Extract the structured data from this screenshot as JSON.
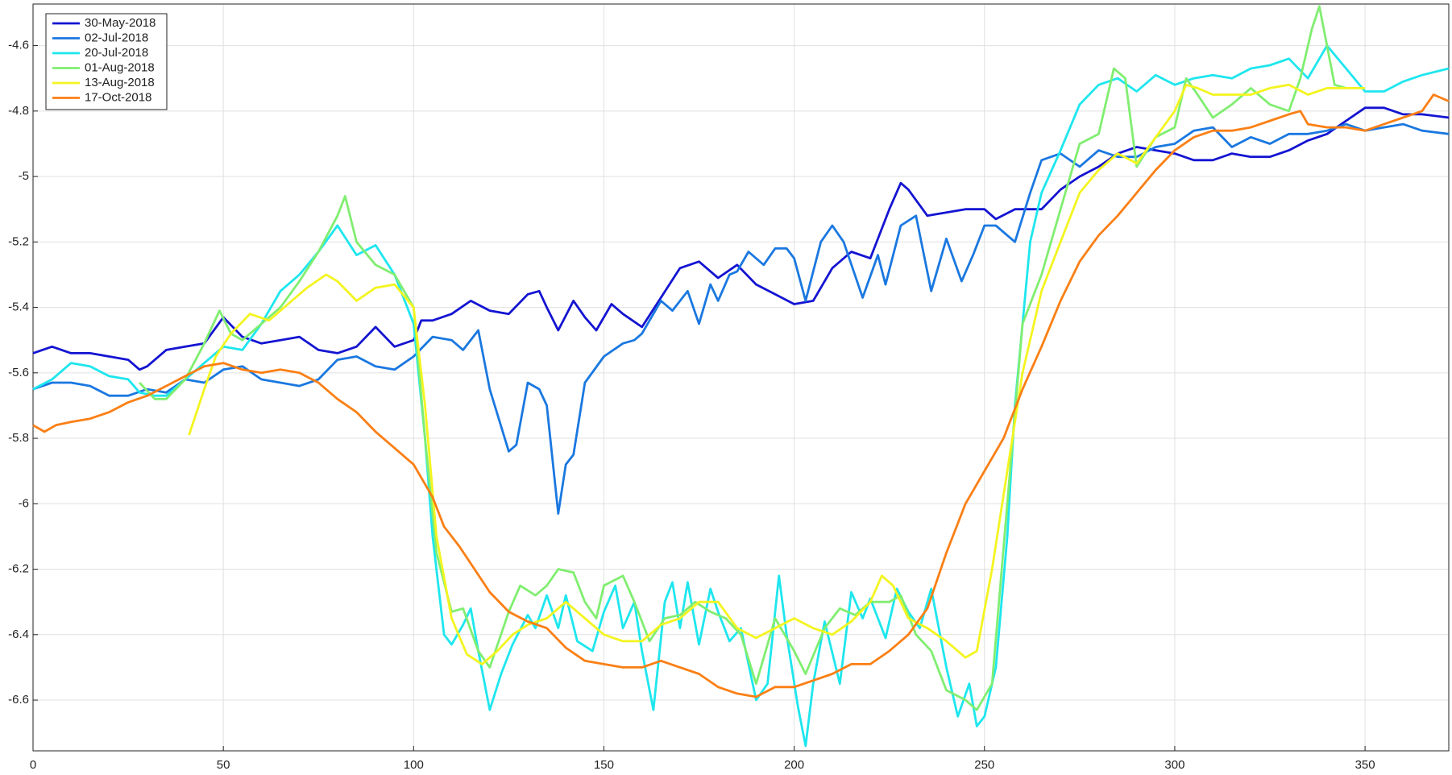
{
  "chart_data": {
    "type": "line",
    "xlim": [
      0,
      372
    ],
    "ylim": [
      -6.755,
      -4.473
    ],
    "xticks": [
      0,
      50,
      100,
      150,
      200,
      250,
      300,
      350
    ],
    "yticks": [
      -6.6,
      -6.4,
      -6.2,
      -6,
      -5.8,
      -5.6,
      -5.4,
      -5.2,
      -5,
      -4.8,
      -4.6
    ],
    "grid": true,
    "legend": "upper left",
    "series": [
      {
        "name": "30-May-2018",
        "color": "#1414d2",
        "x": [
          0,
          5,
          10,
          15,
          20,
          25,
          28,
          30,
          35,
          40,
          45,
          50,
          55,
          60,
          65,
          70,
          75,
          80,
          85,
          90,
          95,
          100,
          102,
          105,
          110,
          115,
          120,
          125,
          130,
          133,
          135,
          138,
          142,
          145,
          148,
          152,
          155,
          160,
          165,
          170,
          175,
          180,
          185,
          190,
          195,
          200,
          205,
          210,
          215,
          220,
          225,
          228,
          230,
          235,
          240,
          245,
          250,
          253,
          258,
          265,
          270,
          275,
          280,
          285,
          290,
          295,
          300,
          305,
          310,
          315,
          320,
          325,
          330,
          335,
          340,
          345,
          350,
          355,
          360,
          365,
          372
        ],
        "values": [
          -5.54,
          -5.52,
          -5.54,
          -5.54,
          -5.55,
          -5.56,
          -5.59,
          -5.58,
          -5.53,
          -5.52,
          -5.51,
          -5.43,
          -5.49,
          -5.51,
          -5.5,
          -5.49,
          -5.53,
          -5.54,
          -5.52,
          -5.46,
          -5.52,
          -5.5,
          -5.44,
          -5.44,
          -5.42,
          -5.38,
          -5.41,
          -5.42,
          -5.36,
          -5.35,
          -5.4,
          -5.47,
          -5.38,
          -5.43,
          -5.47,
          -5.39,
          -5.42,
          -5.46,
          -5.37,
          -5.28,
          -5.26,
          -5.31,
          -5.27,
          -5.33,
          -5.36,
          -5.39,
          -5.38,
          -5.28,
          -5.23,
          -5.25,
          -5.1,
          -5.02,
          -5.04,
          -5.12,
          -5.11,
          -5.1,
          -5.1,
          -5.13,
          -5.1,
          -5.1,
          -5.04,
          -5,
          -4.97,
          -4.93,
          -4.91,
          -4.92,
          -4.93,
          -4.95,
          -4.95,
          -4.93,
          -4.94,
          -4.94,
          -4.92,
          -4.89,
          -4.87,
          -4.83,
          -4.79,
          -4.79,
          -4.81,
          -4.81,
          -4.82
        ]
      },
      {
        "name": "02-Jul-2018",
        "color": "#1a78e0",
        "x": [
          0,
          5,
          10,
          15,
          20,
          25,
          30,
          35,
          40,
          45,
          50,
          55,
          60,
          65,
          70,
          75,
          80,
          85,
          90,
          95,
          100,
          105,
          110,
          113,
          117,
          120,
          125,
          127,
          130,
          133,
          135,
          138,
          140,
          142,
          145,
          150,
          155,
          158,
          160,
          165,
          168,
          172,
          175,
          178,
          180,
          183,
          185,
          188,
          192,
          195,
          198,
          200,
          203,
          207,
          210,
          213,
          218,
          222,
          224,
          228,
          232,
          236,
          240,
          244,
          247,
          250,
          253,
          258,
          262,
          265,
          270,
          275,
          280,
          285,
          290,
          295,
          300,
          305,
          310,
          315,
          320,
          325,
          330,
          335,
          340,
          345,
          350,
          355,
          360,
          365,
          372
        ],
        "values": [
          -5.65,
          -5.63,
          -5.63,
          -5.64,
          -5.67,
          -5.67,
          -5.65,
          -5.66,
          -5.62,
          -5.63,
          -5.59,
          -5.58,
          -5.62,
          -5.63,
          -5.64,
          -5.62,
          -5.56,
          -5.55,
          -5.58,
          -5.59,
          -5.55,
          -5.49,
          -5.5,
          -5.53,
          -5.47,
          -5.65,
          -5.84,
          -5.82,
          -5.63,
          -5.65,
          -5.7,
          -6.03,
          -5.88,
          -5.85,
          -5.63,
          -5.55,
          -5.51,
          -5.5,
          -5.48,
          -5.38,
          -5.41,
          -5.35,
          -5.45,
          -5.33,
          -5.38,
          -5.3,
          -5.29,
          -5.23,
          -5.27,
          -5.22,
          -5.22,
          -5.25,
          -5.38,
          -5.2,
          -5.15,
          -5.2,
          -5.37,
          -5.24,
          -5.33,
          -5.15,
          -5.12,
          -5.35,
          -5.19,
          -5.32,
          -5.24,
          -5.15,
          -5.15,
          -5.2,
          -5.05,
          -4.95,
          -4.93,
          -4.97,
          -4.92,
          -4.94,
          -4.94,
          -4.91,
          -4.9,
          -4.86,
          -4.85,
          -4.91,
          -4.88,
          -4.9,
          -4.87,
          -4.87,
          -4.86,
          -4.84,
          -4.86,
          -4.85,
          -4.84,
          -4.86,
          -4.87
        ]
      },
      {
        "name": "20-Jul-2018",
        "color": "#1ee6ee",
        "x": [
          0,
          5,
          10,
          15,
          20,
          25,
          28,
          32,
          35,
          40,
          45,
          50,
          55,
          60,
          65,
          70,
          75,
          80,
          85,
          90,
          95,
          100,
          103,
          105,
          108,
          110,
          113,
          115,
          117,
          120,
          123,
          126,
          130,
          132,
          135,
          138,
          140,
          143,
          147,
          150,
          153,
          155,
          158,
          160,
          163,
          166,
          168,
          170,
          172,
          175,
          178,
          180,
          183,
          186,
          190,
          193,
          196,
          198,
          201,
          203,
          205,
          208,
          212,
          215,
          218,
          220,
          224,
          227,
          230,
          233,
          236,
          240,
          243,
          246,
          248,
          250,
          253,
          256,
          258,
          262,
          265,
          270,
          275,
          280,
          285,
          290,
          295,
          300,
          305,
          310,
          315,
          320,
          325,
          330,
          335,
          340,
          345,
          350,
          355,
          360,
          365,
          372
        ],
        "values": [
          -5.65,
          -5.62,
          -5.57,
          -5.58,
          -5.61,
          -5.62,
          -5.66,
          -5.67,
          -5.67,
          -5.62,
          -5.57,
          -5.52,
          -5.53,
          -5.45,
          -5.35,
          -5.3,
          -5.23,
          -5.15,
          -5.24,
          -5.21,
          -5.3,
          -5.45,
          -5.8,
          -6.1,
          -6.4,
          -6.43,
          -6.37,
          -6.32,
          -6.45,
          -6.63,
          -6.52,
          -6.43,
          -6.34,
          -6.38,
          -6.28,
          -6.38,
          -6.28,
          -6.42,
          -6.45,
          -6.33,
          -6.25,
          -6.38,
          -6.3,
          -6.45,
          -6.63,
          -6.3,
          -6.24,
          -6.38,
          -6.24,
          -6.43,
          -6.26,
          -6.33,
          -6.42,
          -6.38,
          -6.6,
          -6.55,
          -6.22,
          -6.4,
          -6.62,
          -6.74,
          -6.55,
          -6.36,
          -6.55,
          -6.27,
          -6.35,
          -6.29,
          -6.41,
          -6.26,
          -6.33,
          -6.38,
          -6.26,
          -6.5,
          -6.65,
          -6.55,
          -6.68,
          -6.65,
          -6.5,
          -6.1,
          -5.7,
          -5.2,
          -5.05,
          -4.92,
          -4.78,
          -4.72,
          -4.7,
          -4.74,
          -4.69,
          -4.72,
          -4.7,
          -4.69,
          -4.7,
          -4.67,
          -4.66,
          -4.64,
          -4.7,
          -4.6,
          -4.67,
          -4.74,
          -4.74,
          -4.71,
          -4.69,
          -4.67
        ]
      },
      {
        "name": "01-Aug-2018",
        "color": "#80ee70",
        "x": [
          28,
          32,
          35,
          40,
          45,
          49,
          52,
          55,
          60,
          65,
          70,
          75,
          80,
          82,
          85,
          90,
          95,
          100,
          103,
          106,
          110,
          113,
          117,
          120,
          125,
          128,
          132,
          135,
          138,
          142,
          145,
          148,
          150,
          155,
          158,
          162,
          166,
          170,
          174,
          178,
          182,
          186,
          190,
          195,
          200,
          203,
          208,
          212,
          216,
          220,
          225,
          228,
          232,
          236,
          240,
          245,
          248,
          252,
          256,
          260,
          265,
          270,
          275,
          280,
          284,
          287,
          290,
          295,
          300,
          303,
          306,
          310,
          315,
          320,
          325,
          330,
          333,
          336,
          338,
          342,
          345
        ],
        "values": [
          -5.63,
          -5.68,
          -5.68,
          -5.62,
          -5.51,
          -5.41,
          -5.48,
          -5.5,
          -5.45,
          -5.4,
          -5.32,
          -5.23,
          -5.12,
          -5.06,
          -5.2,
          -5.27,
          -5.3,
          -5.4,
          -5.8,
          -6.15,
          -6.33,
          -6.32,
          -6.45,
          -6.5,
          -6.33,
          -6.25,
          -6.28,
          -6.25,
          -6.2,
          -6.21,
          -6.3,
          -6.35,
          -6.25,
          -6.22,
          -6.3,
          -6.42,
          -6.35,
          -6.34,
          -6.3,
          -6.33,
          -6.35,
          -6.4,
          -6.55,
          -6.35,
          -6.45,
          -6.52,
          -6.38,
          -6.32,
          -6.34,
          -6.3,
          -6.3,
          -6.28,
          -6.4,
          -6.45,
          -6.57,
          -6.6,
          -6.63,
          -6.55,
          -6,
          -5.45,
          -5.3,
          -5.1,
          -4.9,
          -4.87,
          -4.67,
          -4.7,
          -4.97,
          -4.88,
          -4.85,
          -4.7,
          -4.75,
          -4.82,
          -4.78,
          -4.73,
          -4.78,
          -4.8,
          -4.7,
          -4.55,
          -4.48,
          -4.72,
          -4.73
        ]
      },
      {
        "name": "13-Aug-2018",
        "color": "#f4f420",
        "x": [
          41,
          45,
          48,
          52,
          57,
          62,
          67,
          72,
          77,
          80,
          85,
          90,
          95,
          100,
          103,
          106,
          110,
          114,
          118,
          122,
          126,
          130,
          135,
          140,
          145,
          150,
          155,
          160,
          165,
          170,
          175,
          180,
          185,
          190,
          195,
          200,
          205,
          210,
          215,
          220,
          223,
          226,
          230,
          235,
          240,
          245,
          248,
          252,
          256,
          260,
          265,
          270,
          275,
          280,
          285,
          290,
          295,
          300,
          303,
          306,
          310,
          315,
          320,
          325,
          330,
          335,
          340,
          345,
          350
        ],
        "values": [
          -5.79,
          -5.65,
          -5.55,
          -5.48,
          -5.42,
          -5.44,
          -5.39,
          -5.34,
          -5.3,
          -5.32,
          -5.38,
          -5.34,
          -5.33,
          -5.4,
          -5.7,
          -6.1,
          -6.35,
          -6.46,
          -6.49,
          -6.45,
          -6.4,
          -6.37,
          -6.35,
          -6.3,
          -6.35,
          -6.4,
          -6.42,
          -6.42,
          -6.37,
          -6.35,
          -6.3,
          -6.3,
          -6.38,
          -6.41,
          -6.38,
          -6.35,
          -6.38,
          -6.4,
          -6.36,
          -6.3,
          -6.22,
          -6.25,
          -6.35,
          -6.38,
          -6.42,
          -6.47,
          -6.45,
          -6.2,
          -5.9,
          -5.6,
          -5.35,
          -5.2,
          -5.05,
          -4.98,
          -4.93,
          -4.96,
          -4.88,
          -4.8,
          -4.72,
          -4.73,
          -4.75,
          -4.75,
          -4.75,
          -4.73,
          -4.72,
          -4.75,
          -4.73,
          -4.73,
          -4.73
        ]
      },
      {
        "name": "17-Oct-2018",
        "color": "#fb7f14",
        "x": [
          0,
          3,
          6,
          10,
          15,
          20,
          25,
          30,
          35,
          40,
          45,
          50,
          55,
          60,
          65,
          70,
          75,
          80,
          85,
          90,
          95,
          100,
          105,
          108,
          112,
          116,
          120,
          125,
          130,
          135,
          140,
          145,
          150,
          155,
          160,
          165,
          170,
          175,
          180,
          185,
          190,
          195,
          200,
          205,
          210,
          215,
          220,
          225,
          230,
          235,
          240,
          245,
          250,
          255,
          260,
          265,
          270,
          275,
          280,
          285,
          290,
          295,
          300,
          305,
          310,
          315,
          320,
          325,
          330,
          333,
          335,
          340,
          345,
          350,
          355,
          360,
          365,
          368,
          372
        ],
        "values": [
          -5.76,
          -5.78,
          -5.76,
          -5.75,
          -5.74,
          -5.72,
          -5.69,
          -5.67,
          -5.64,
          -5.61,
          -5.58,
          -5.57,
          -5.59,
          -5.6,
          -5.59,
          -5.6,
          -5.63,
          -5.68,
          -5.72,
          -5.78,
          -5.83,
          -5.88,
          -5.98,
          -6.07,
          -6.13,
          -6.2,
          -6.27,
          -6.33,
          -6.36,
          -6.38,
          -6.44,
          -6.48,
          -6.49,
          -6.5,
          -6.5,
          -6.48,
          -6.5,
          -6.52,
          -6.56,
          -6.58,
          -6.59,
          -6.56,
          -6.56,
          -6.54,
          -6.52,
          -6.49,
          -6.49,
          -6.45,
          -6.4,
          -6.32,
          -6.15,
          -6,
          -5.9,
          -5.8,
          -5.65,
          -5.52,
          -5.38,
          -5.26,
          -5.18,
          -5.12,
          -5.05,
          -4.98,
          -4.92,
          -4.88,
          -4.86,
          -4.86,
          -4.85,
          -4.83,
          -4.81,
          -4.8,
          -4.84,
          -4.85,
          -4.85,
          -4.86,
          -4.84,
          -4.82,
          -4.8,
          -4.75,
          -4.77
        ]
      }
    ]
  }
}
